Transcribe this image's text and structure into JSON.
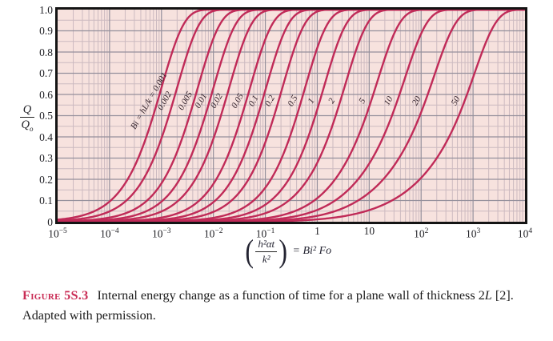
{
  "chart": {
    "colors": {
      "plot_bg": "#f7e2de",
      "grid_minor": "#ccbac0",
      "grid_major": "#95909c",
      "curve": "#c02b58",
      "border": "#141414",
      "axis_text": "#1f1f24",
      "curve_label_text": "#33222b",
      "figure_label": "#c92b54",
      "caption_text": "#1b1b1b",
      "formula_text": "#242432"
    },
    "x_ticks": [
      {
        "b": "10",
        "e": "−5"
      },
      {
        "b": "10",
        "e": "−4"
      },
      {
        "b": "10",
        "e": "−3"
      },
      {
        "b": "10",
        "e": "−2"
      },
      {
        "b": "10",
        "e": "−1"
      },
      {
        "b": "1",
        "e": ""
      },
      {
        "b": "10",
        "e": ""
      },
      {
        "b": "10",
        "e": "2"
      },
      {
        "b": "10",
        "e": "3"
      },
      {
        "b": "10",
        "e": "4"
      }
    ],
    "y_ticks": [
      "1.0",
      "0.9",
      "0.8",
      "0.7",
      "0.6",
      "0.5",
      "0.4",
      "0.3",
      "0.2",
      "0.1",
      "0"
    ],
    "y_axis_label": {
      "num": "Q",
      "den": "Q",
      "den_sub": "o"
    },
    "x_axis_label": {
      "lparen": "(",
      "frac_num": "h²αt",
      "frac_den": "k²",
      "rparen": ")",
      "rhs": "= Bi² Fo"
    }
  },
  "chart_data": {
    "type": "line",
    "title": "",
    "xlabel": "(h²αt/k²) = Bi²·Fo",
    "ylabel": "Q/Qo",
    "xscale": "log",
    "xlim": [
      1e-05,
      10000
    ],
    "ylim": [
      0,
      1
    ],
    "grid": "log minor + major, on",
    "legend_position": "labels along curves",
    "curve_model": "plane wall transient conduction: Q/Qo = 1 − Σn [4·sin²ζn /(ζn(2ζn + sin 2ζn))]·exp(−ζn²·x/Bi²), with ζn·tan ζn = Bi and x = Bi²·Fo",
    "series": [
      {
        "label": "Bi = hL/k = 0.001",
        "bi": 0.001,
        "x_at_half_rise": 0.00069
      },
      {
        "label": "0.002",
        "bi": 0.002,
        "x_at_half_rise": 0.00139
      },
      {
        "label": "0.005",
        "bi": 0.005,
        "x_at_half_rise": 0.00348
      },
      {
        "label": "0.01",
        "bi": 0.01,
        "x_at_half_rise": 0.00695
      },
      {
        "label": "0.02",
        "bi": 0.02,
        "x_at_half_rise": 0.014
      },
      {
        "label": "0.05",
        "bi": 0.05,
        "x_at_half_rise": 0.0352
      },
      {
        "label": "0.1",
        "bi": 0.1,
        "x_at_half_rise": 0.0716
      },
      {
        "label": "0.2",
        "bi": 0.2,
        "x_at_half_rise": 0.148
      },
      {
        "label": "0.5",
        "bi": 0.5,
        "x_at_half_rise": 0.4
      },
      {
        "label": "1",
        "bi": 1,
        "x_at_half_rise": 0.92
      },
      {
        "label": "2",
        "bi": 2,
        "x_at_half_rise": 2.26
      },
      {
        "label": "5",
        "bi": 5,
        "x_at_half_rise": 8.7
      },
      {
        "label": "10",
        "bi": 10,
        "x_at_half_rise": 27.4
      },
      {
        "label": "20",
        "bi": 20,
        "x_at_half_rise": 94
      },
      {
        "label": "50",
        "bi": 50,
        "x_at_half_rise": 530
      }
    ]
  },
  "caption": {
    "label": "Figure 5S.3",
    "body1": "Internal energy change as a function of time for a plane wall of thickness ",
    "thickness_num": "2",
    "thickness_var": "L",
    "body2": " [2]. Adapted with permission."
  }
}
